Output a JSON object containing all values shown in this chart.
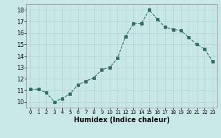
{
  "x": [
    0,
    1,
    2,
    3,
    4,
    5,
    6,
    7,
    8,
    9,
    10,
    11,
    12,
    13,
    14,
    15,
    16,
    17,
    18,
    19,
    20,
    21,
    22,
    23
  ],
  "y": [
    11.1,
    11.1,
    10.8,
    10.0,
    10.3,
    10.7,
    11.5,
    11.8,
    12.1,
    12.8,
    13.0,
    13.8,
    15.7,
    16.8,
    16.8,
    18.0,
    17.2,
    16.5,
    16.3,
    16.2,
    15.6,
    15.0,
    14.6,
    13.5
  ],
  "xlabel": "Humidex (Indice chaleur)",
  "ylim": [
    9.5,
    18.5
  ],
  "xlim": [
    -0.5,
    23.5
  ],
  "yticks": [
    10,
    11,
    12,
    13,
    14,
    15,
    16,
    17,
    18
  ],
  "xtick_labels": [
    "0",
    "1",
    "2",
    "3",
    "4",
    "5",
    "6",
    "7",
    "8",
    "9",
    "10",
    "11",
    "12",
    "13",
    "14",
    "15",
    "16",
    "17",
    "18",
    "19",
    "20",
    "21",
    "22",
    "23"
  ],
  "line_color": "#2d6b5a",
  "marker_color": "#2d6b5a",
  "bg_color": "#c8e8e8",
  "grid_color": "#b8d4d4",
  "xlabel_fontsize": 7,
  "ytick_fontsize": 6,
  "xtick_fontsize": 5
}
